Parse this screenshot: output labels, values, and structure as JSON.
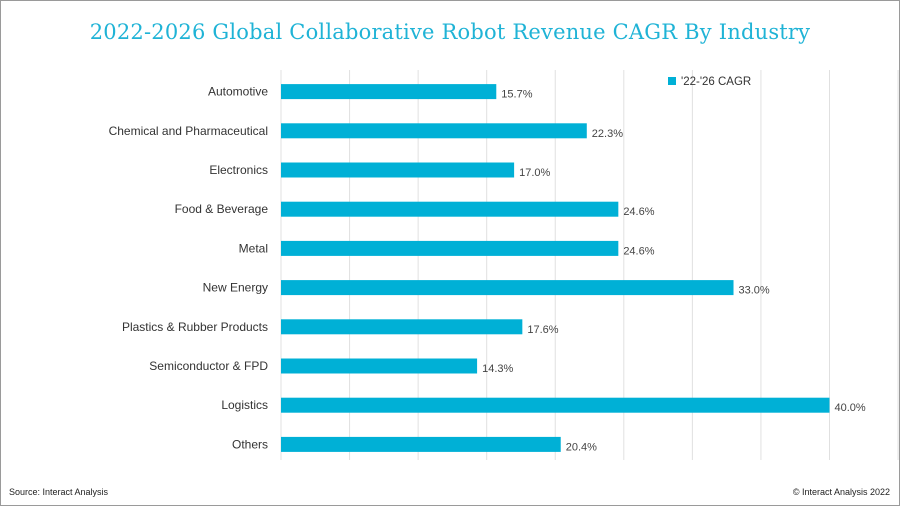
{
  "title": "2022-2026 Global Collaborative Robot Revenue CAGR By Industry",
  "source": "Source: Interact Analysis",
  "copyright": "© Interact Analysis 2022",
  "colors": {
    "bar": "#00b0d6",
    "title": "#1fb3d6",
    "grid": "#e0e0e0"
  },
  "chart_data": {
    "type": "bar",
    "orientation": "horizontal",
    "categories": [
      "Automotive",
      "Chemical and Pharmaceutical",
      "Electronics",
      "Food & Beverage",
      "Metal",
      "New Energy",
      "Plastics & Rubber Products",
      "Semiconductor & FPD",
      "Logistics",
      "Others"
    ],
    "series": [
      {
        "name": "'22-'26 CAGR",
        "values": [
          15.7,
          22.3,
          17.0,
          24.6,
          24.6,
          33.0,
          17.6,
          14.3,
          40.0,
          20.4
        ],
        "labels": [
          "15.7%",
          "22.3%",
          "17.0%",
          "24.6%",
          "24.6%",
          "33.0%",
          "17.6%",
          "14.3%",
          "40.0%",
          "20.4%"
        ]
      }
    ],
    "xlim": [
      0,
      45
    ],
    "grid": true,
    "legend": "top-right"
  }
}
